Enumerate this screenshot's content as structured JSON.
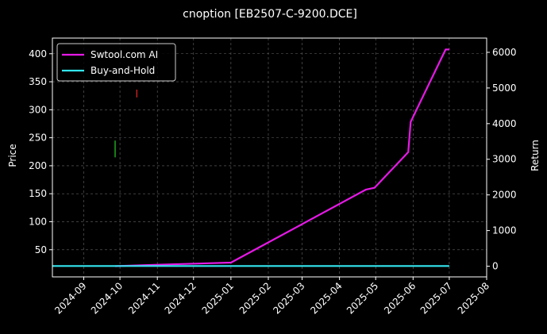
{
  "chart_data": {
    "type": "line",
    "title": "cnoption [EB2507-C-9200.DCE]",
    "xlabel": "",
    "ylabel_left": "Price",
    "ylabel_right": "Return",
    "x_ticks": [
      "2024-09",
      "2024-10",
      "2024-11",
      "2024-12",
      "2025-01",
      "2025-02",
      "2025-03",
      "2025-04",
      "2025-05",
      "2025-06",
      "2025-07",
      "2025-08"
    ],
    "x_range": [
      "2024-08-06",
      "2025-08-01"
    ],
    "y_left_ticks": [
      50,
      100,
      150,
      200,
      250,
      300,
      350,
      400
    ],
    "y_left_range": [
      1.5,
      428
    ],
    "y_right_ticks": [
      0,
      1000,
      2000,
      3000,
      4000,
      5000,
      6000
    ],
    "y_right_range": [
      -300,
      6400
    ],
    "grid": true,
    "legend_position": "top-left",
    "background": "#000000",
    "series": [
      {
        "name": "Swtool.com AI",
        "axis": "right",
        "color": "#e619e6",
        "points": [
          [
            "2024-09-27",
            0
          ],
          [
            "2024-11-01",
            40
          ],
          [
            "2025-01-01",
            100
          ],
          [
            "2025-04-23",
            2150
          ],
          [
            "2025-04-30",
            2200
          ],
          [
            "2025-05-28",
            3200
          ],
          [
            "2025-05-30",
            4050
          ],
          [
            "2025-06-28",
            6080
          ],
          [
            "2025-07-01",
            6080
          ]
        ]
      },
      {
        "name": "Buy-and-Hold",
        "axis": "right",
        "color": "#33e6f0",
        "points": [
          [
            "2024-08-06",
            5
          ],
          [
            "2025-07-01",
            5
          ]
        ]
      }
    ],
    "price_marks": [
      {
        "date": "2024-09-27",
        "low": 215,
        "high": 245,
        "color": "#22c022"
      },
      {
        "date": "2024-10-15",
        "low": 322,
        "high": 336,
        "color": "#e02020"
      }
    ]
  }
}
